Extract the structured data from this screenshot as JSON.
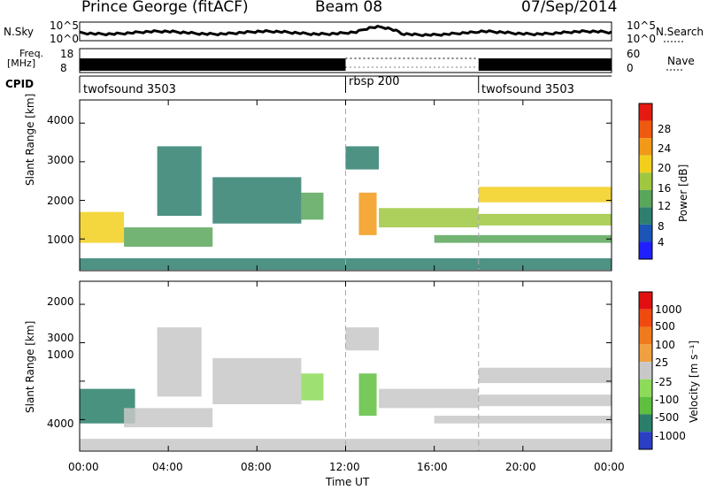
{
  "header": {
    "station": "Prince George (fitACF)",
    "beam": "Beam 08",
    "date": "07/Sep/2014"
  },
  "top_panels": {
    "nsky_label": "N.Sky",
    "nsearch_label": "N.Search",
    "noise_ticks": [
      "10^5",
      "10^0"
    ],
    "freq_label_1": "Freq.",
    "freq_label_2": "[MHz]",
    "freq_ticks": [
      "18",
      "8"
    ],
    "nave_label": "Nave",
    "nave_ticks": [
      "60",
      "0"
    ],
    "cpid_label": "CPID",
    "cpid_segments": [
      {
        "name": "twofsound 3503",
        "start_hour": 0,
        "end_hour": 12
      },
      {
        "name": "rbsp 200",
        "start_hour": 12,
        "end_hour": 18
      },
      {
        "name": "twofsound 3503",
        "start_hour": 18,
        "end_hour": 24
      }
    ]
  },
  "axes": {
    "ylabel": "Slant Range [km]",
    "xlabel": "Time UT",
    "y_ticks": [
      "1000",
      "2000",
      "3000",
      "4000"
    ],
    "x_ticks": [
      "00:00",
      "04:00",
      "08:00",
      "12:00",
      "16:00",
      "20:00",
      "00:00"
    ]
  },
  "colorbars": {
    "power": {
      "label": "Power [dB]",
      "ticks": [
        "4",
        "8",
        "12",
        "16",
        "20",
        "24",
        "28"
      ],
      "colors": [
        "#1f1fff",
        "#1c55b8",
        "#2f7f6e",
        "#5aa65a",
        "#9fc740",
        "#f2cf1d",
        "#f29a17",
        "#ef5a11",
        "#e51b12"
      ]
    },
    "velocity": {
      "label": "Velocity [m s⁻¹]",
      "ticks": [
        "1000",
        "500",
        "100",
        "25",
        "-25",
        "-100",
        "-500",
        "-1000"
      ],
      "colors": [
        "#2a3fc4",
        "#2a7f6a",
        "#5fbf3f",
        "#8edb5a",
        "#c8c8c8",
        "#f0a040",
        "#f07a1c",
        "#f04a10",
        "#e01010"
      ]
    }
  },
  "chart_data": [
    {
      "type": "heatmap",
      "title": "",
      "xlabel": "",
      "ylabel": "Slant Range [km]",
      "quantity": "Power [dB]",
      "xlim": [
        "00:00",
        "24:00"
      ],
      "ylim": [
        180,
        4600
      ],
      "colorbar_range": [
        0,
        30
      ],
      "features": [
        {
          "start_hour": 0.0,
          "end_hour": 2.0,
          "range_from_km": 900,
          "range_to_km": 1700,
          "level_db": 20
        },
        {
          "start_hour": 2.0,
          "end_hour": 6.0,
          "range_from_km": 800,
          "range_to_km": 1300,
          "level_db": 10
        },
        {
          "start_hour": 3.5,
          "end_hour": 5.5,
          "range_from_km": 1600,
          "range_to_km": 3400,
          "level_db": 6
        },
        {
          "start_hour": 6.0,
          "end_hour": 10.0,
          "range_from_km": 1400,
          "range_to_km": 2600,
          "level_db": 8
        },
        {
          "start_hour": 10.0,
          "end_hour": 11.0,
          "range_from_km": 1500,
          "range_to_km": 2200,
          "level_db": 12
        },
        {
          "start_hour": 12.0,
          "end_hour": 13.5,
          "range_from_km": 2800,
          "range_to_km": 3400,
          "level_db": 8
        },
        {
          "start_hour": 12.6,
          "end_hour": 13.4,
          "range_from_km": 1100,
          "range_to_km": 2200,
          "level_db": 24
        },
        {
          "start_hour": 13.5,
          "end_hour": 18.0,
          "range_from_km": 1300,
          "range_to_km": 1800,
          "level_db": 14
        },
        {
          "start_hour": 18.0,
          "end_hour": 24.0,
          "range_from_km": 1950,
          "range_to_km": 2350,
          "level_db": 18
        },
        {
          "start_hour": 18.0,
          "end_hour": 24.0,
          "range_from_km": 1350,
          "range_to_km": 1650,
          "level_db": 16
        },
        {
          "start_hour": 16.0,
          "end_hour": 24.0,
          "range_from_km": 900,
          "range_to_km": 1100,
          "level_db": 10
        },
        {
          "start_hour": 0.0,
          "end_hour": 24.0,
          "range_from_km": 200,
          "range_to_km": 500,
          "level_db": 6
        }
      ]
    },
    {
      "type": "heatmap",
      "title": "",
      "xlabel": "Time UT",
      "ylabel": "Slant Range [km]",
      "quantity": "Velocity [m s-1]",
      "xlim": [
        "00:00",
        "24:00"
      ],
      "ylim": [
        180,
        4600
      ],
      "colorbar_range": [
        -1000,
        1000
      ],
      "features": [
        {
          "start_hour": 0.0,
          "end_hour": 2.5,
          "range_from_km": 900,
          "range_to_km": 1800,
          "velocity": -800
        },
        {
          "start_hour": 2.0,
          "end_hour": 6.0,
          "range_from_km": 800,
          "range_to_km": 1300,
          "velocity": -20
        },
        {
          "start_hour": 3.5,
          "end_hour": 5.5,
          "range_from_km": 1600,
          "range_to_km": 3400,
          "velocity": -20
        },
        {
          "start_hour": 6.0,
          "end_hour": 10.0,
          "range_from_km": 1400,
          "range_to_km": 2600,
          "velocity": -20
        },
        {
          "start_hour": 10.0,
          "end_hour": 11.0,
          "range_from_km": 1500,
          "range_to_km": 2200,
          "velocity": -300
        },
        {
          "start_hour": 12.0,
          "end_hour": 13.5,
          "range_from_km": 2800,
          "range_to_km": 3400,
          "velocity": -20
        },
        {
          "start_hour": 12.6,
          "end_hour": 13.4,
          "range_from_km": 1100,
          "range_to_km": 2200,
          "velocity": -400
        },
        {
          "start_hour": 13.5,
          "end_hour": 18.0,
          "range_from_km": 1300,
          "range_to_km": 1800,
          "velocity": -20
        },
        {
          "start_hour": 18.0,
          "end_hour": 24.0,
          "range_from_km": 1950,
          "range_to_km": 2350,
          "velocity": -20
        },
        {
          "start_hour": 18.0,
          "end_hour": 24.0,
          "range_from_km": 1350,
          "range_to_km": 1650,
          "velocity": -20
        },
        {
          "start_hour": 16.0,
          "end_hour": 24.0,
          "range_from_km": 900,
          "range_to_km": 1100,
          "velocity": 50
        },
        {
          "start_hour": 0.0,
          "end_hour": 24.0,
          "range_from_km": 200,
          "range_to_km": 500,
          "velocity": 80
        }
      ]
    }
  ]
}
